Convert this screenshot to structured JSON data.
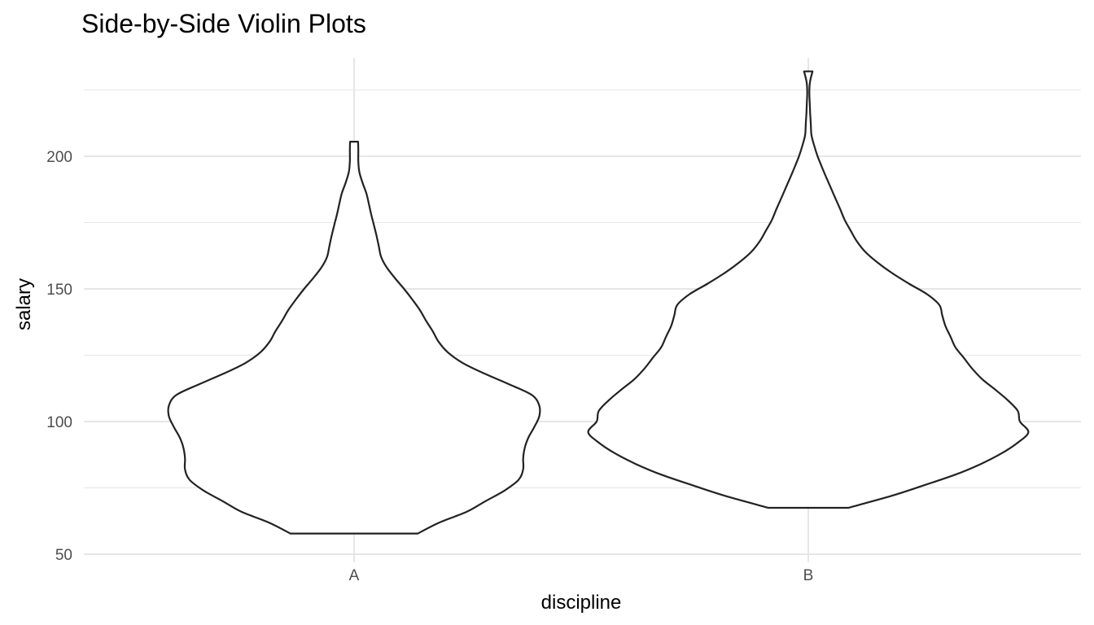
{
  "chart_data": {
    "type": "violin",
    "title": "Side-by-Side Violin Plots",
    "xlabel": "discipline",
    "ylabel": "salary",
    "categories": [
      "A",
      "B"
    ],
    "ylim": [
      47,
      237
    ],
    "y_ticks": [
      50,
      100,
      150,
      200
    ],
    "grid": true,
    "legend": "none",
    "colors": {
      "outline": "#222222",
      "fill": "#ffffff",
      "grid": "#e6e6e6"
    },
    "violins": [
      {
        "category": "A",
        "min": 57.8,
        "max": 205.5,
        "profile": [
          [
            57.8,
            0.301
          ],
          [
            62,
            0.405
          ],
          [
            66,
            0.533
          ],
          [
            70,
            0.621
          ],
          [
            74,
            0.711
          ],
          [
            78,
            0.777
          ],
          [
            82,
            0.799
          ],
          [
            86,
            0.799
          ],
          [
            90,
            0.806
          ],
          [
            94,
            0.824
          ],
          [
            98,
            0.852
          ],
          [
            102,
            0.875
          ],
          [
            106,
            0.875
          ],
          [
            110,
            0.84
          ],
          [
            114,
            0.734
          ],
          [
            118,
            0.618
          ],
          [
            122,
            0.515
          ],
          [
            126,
            0.444
          ],
          [
            130,
            0.4
          ],
          [
            134,
            0.372
          ],
          [
            138,
            0.34
          ],
          [
            142,
            0.311
          ],
          [
            146,
            0.275
          ],
          [
            150,
            0.236
          ],
          [
            154,
            0.194
          ],
          [
            158,
            0.155
          ],
          [
            162,
            0.128
          ],
          [
            166,
            0.117
          ],
          [
            170,
            0.106
          ],
          [
            174,
            0.094
          ],
          [
            178,
            0.081
          ],
          [
            182,
            0.07
          ],
          [
            186,
            0.058
          ],
          [
            190,
            0.04
          ],
          [
            194,
            0.025
          ],
          [
            198,
            0.02
          ],
          [
            202,
            0.02
          ],
          [
            205.5,
            0.019
          ]
        ]
      },
      {
        "category": "B",
        "min": 67.5,
        "max": 232,
        "profile": [
          [
            67.5,
            0.189
          ],
          [
            72,
            0.393
          ],
          [
            76,
            0.548
          ],
          [
            80,
            0.695
          ],
          [
            84,
            0.815
          ],
          [
            88,
            0.913
          ],
          [
            92,
            0.989
          ],
          [
            96,
            1.04
          ],
          [
            100,
            1.0
          ],
          [
            104,
            0.99
          ],
          [
            108,
            0.943
          ],
          [
            112,
            0.884
          ],
          [
            116,
            0.821
          ],
          [
            120,
            0.774
          ],
          [
            124,
            0.735
          ],
          [
            128,
            0.695
          ],
          [
            132,
            0.672
          ],
          [
            136,
            0.648
          ],
          [
            140,
            0.633
          ],
          [
            144,
            0.619
          ],
          [
            148,
            0.561
          ],
          [
            152,
            0.475
          ],
          [
            156,
            0.395
          ],
          [
            160,
            0.326
          ],
          [
            164,
            0.269
          ],
          [
            168,
            0.229
          ],
          [
            172,
            0.2
          ],
          [
            176,
            0.172
          ],
          [
            180,
            0.151
          ],
          [
            184,
            0.129
          ],
          [
            188,
            0.107
          ],
          [
            192,
            0.085
          ],
          [
            196,
            0.064
          ],
          [
            200,
            0.044
          ],
          [
            204,
            0.028
          ],
          [
            208,
            0.015
          ],
          [
            212,
            0.012
          ],
          [
            216,
            0.009
          ],
          [
            220,
            0.007
          ],
          [
            224,
            0.005
          ],
          [
            228,
            0.008
          ],
          [
            232,
            0.02
          ]
        ]
      }
    ]
  }
}
